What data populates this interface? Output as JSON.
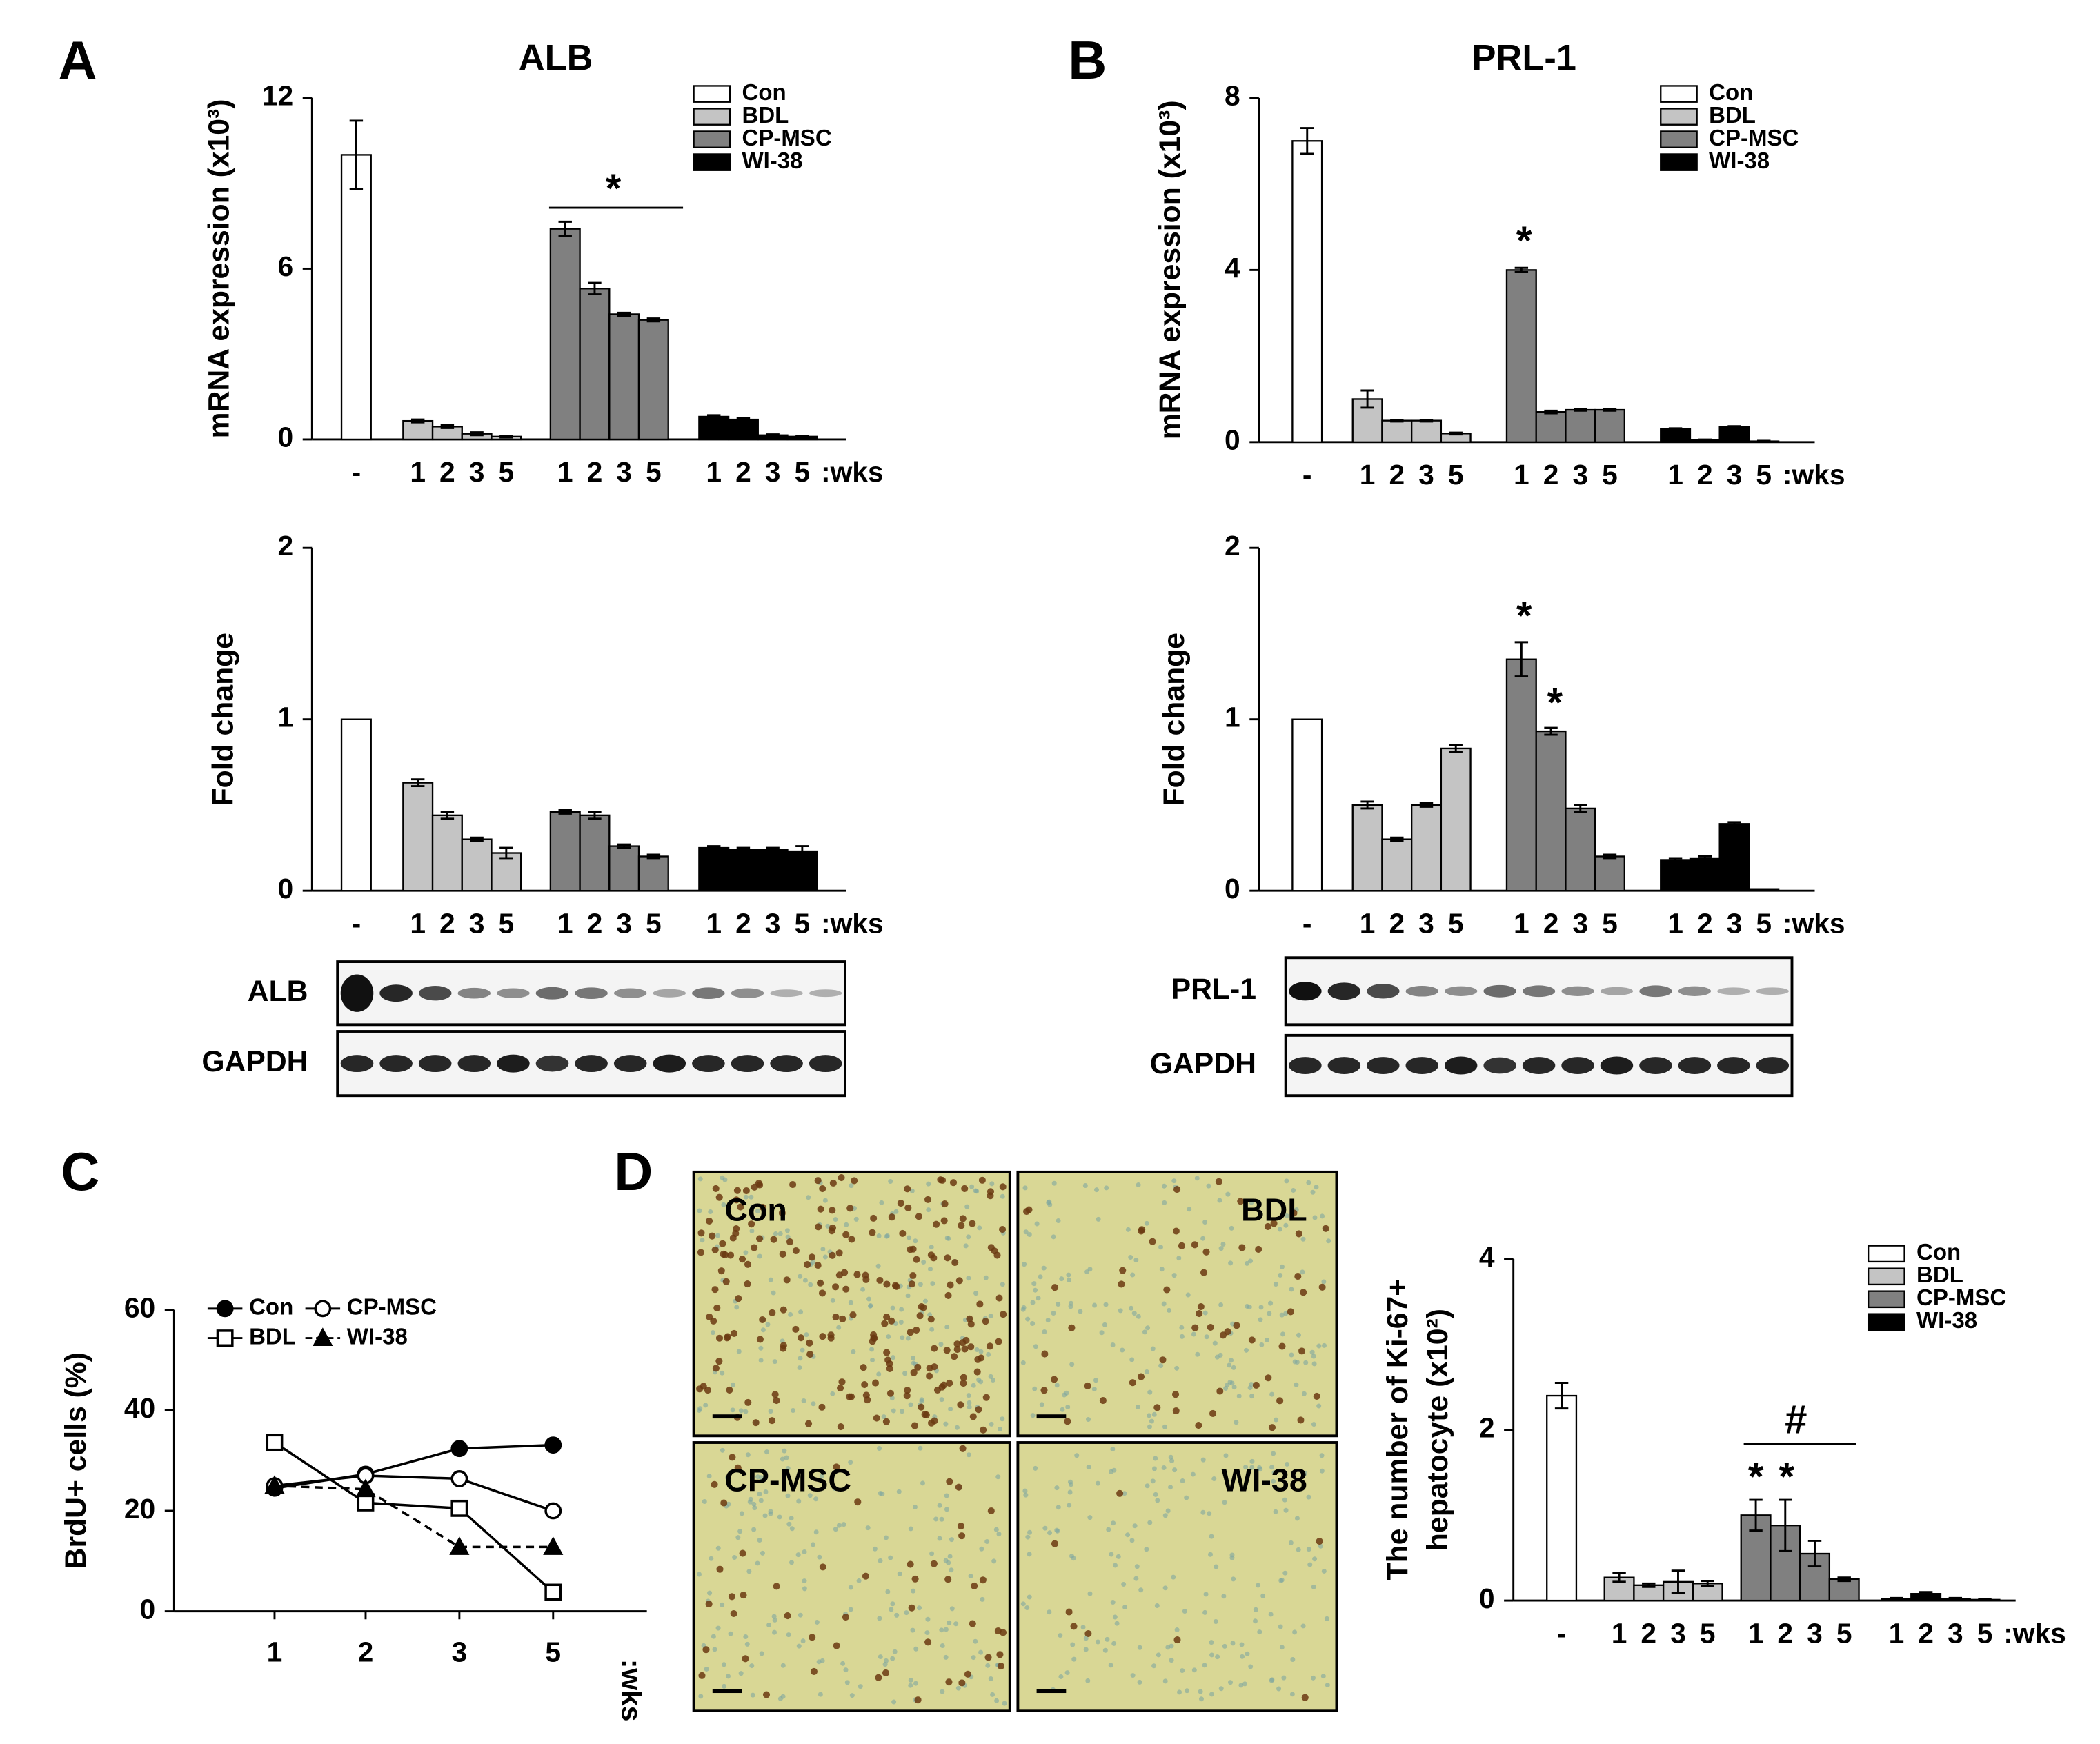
{
  "chart_data": [
    {
      "type": "bar",
      "panel": "A",
      "title": "ALB",
      "ylabel": [
        "mRNA expression (x10³)"
      ],
      "ylim": [
        0,
        12
      ],
      "yticks": [
        0,
        6,
        12
      ],
      "x_unit": ":wks",
      "legend": "upper right",
      "series": [
        {
          "name": "Con",
          "color": "#ffffff",
          "categories": [
            "-"
          ],
          "values": [
            10
          ],
          "errors": [
            1.2
          ]
        },
        {
          "name": "BDL",
          "color": "#c4c4c4",
          "categories": [
            "1",
            "2",
            "3",
            "5"
          ],
          "values": [
            0.65,
            0.45,
            0.2,
            0.1
          ],
          "errors": [
            0.05,
            0.05,
            0.05,
            0.03
          ]
        },
        {
          "name": "CP-MSC",
          "color": "#808080",
          "categories": [
            "1",
            "2",
            "3",
            "5"
          ],
          "values": [
            7.4,
            5.3,
            4.4,
            4.2
          ],
          "errors": [
            0.25,
            0.2,
            0.05,
            0.05
          ]
        },
        {
          "name": "WI-38",
          "color": "#000000",
          "categories": [
            "1",
            "2",
            "3",
            "5"
          ],
          "values": [
            0.8,
            0.7,
            0.15,
            0.1
          ],
          "errors": [
            0.05,
            0.05,
            0.03,
            0.02
          ]
        }
      ],
      "annotations": [
        "*"
      ]
    },
    {
      "type": "bar",
      "ylabel": [
        "Fold change"
      ],
      "ylim": [
        0,
        2
      ],
      "yticks": [
        0,
        1,
        2
      ],
      "x_unit": ":wks",
      "series": [
        {
          "color": "#ffffff",
          "categories": [
            "-"
          ],
          "values": [
            1
          ],
          "errors": [
            0
          ]
        },
        {
          "color": "#c4c4c4",
          "categories": [
            "1",
            "2",
            "3",
            "5"
          ],
          "values": [
            0.63,
            0.44,
            0.3,
            0.22
          ],
          "errors": [
            0.02,
            0.02,
            0.01,
            0.03
          ]
        },
        {
          "color": "#808080",
          "categories": [
            "1",
            "2",
            "3",
            "5"
          ],
          "values": [
            0.46,
            0.44,
            0.26,
            0.2
          ],
          "errors": [
            0.01,
            0.02,
            0.01,
            0.01
          ]
        },
        {
          "color": "#000000",
          "categories": [
            "1",
            "2",
            "3",
            "5"
          ],
          "values": [
            0.25,
            0.24,
            0.24,
            0.23
          ],
          "errors": [
            0.01,
            0.01,
            0.01,
            0.03
          ]
        }
      ],
      "blots": [
        "ALB",
        "GAPDH"
      ]
    },
    {
      "type": "bar",
      "panel": "B",
      "title": "PRL-1",
      "ylabel": [
        "mRNA expression (x10³)"
      ],
      "ylim": [
        0,
        8
      ],
      "yticks": [
        0,
        4,
        8
      ],
      "x_unit": ":wks",
      "legend": "upper right",
      "series": [
        {
          "name": "Con",
          "color": "#ffffff",
          "categories": [
            "-"
          ],
          "values": [
            7.0
          ],
          "errors": [
            0.3
          ]
        },
        {
          "name": "BDL",
          "color": "#c4c4c4",
          "categories": [
            "1",
            "2",
            "3",
            "5"
          ],
          "values": [
            1.0,
            0.5,
            0.5,
            0.2
          ],
          "errors": [
            0.2,
            0.02,
            0.02,
            0.02
          ]
        },
        {
          "name": "CP-MSC",
          "color": "#808080",
          "categories": [
            "1",
            "2",
            "3",
            "5"
          ],
          "values": [
            4.0,
            0.7,
            0.75,
            0.75
          ],
          "errors": [
            0.05,
            0.03,
            0.02,
            0.02
          ]
        },
        {
          "name": "WI-38",
          "color": "#000000",
          "categories": [
            "1",
            "2",
            "3",
            "5"
          ],
          "values": [
            0.3,
            0.05,
            0.35,
            0.02
          ],
          "errors": [
            0.02,
            0.01,
            0.02,
            0.01
          ]
        }
      ],
      "annotations": [
        "*"
      ]
    },
    {
      "type": "bar",
      "ylabel": [
        "Fold change"
      ],
      "ylim": [
        0,
        2
      ],
      "yticks": [
        0,
        1,
        2
      ],
      "x_unit": ":wks",
      "series": [
        {
          "color": "#ffffff",
          "categories": [
            "-"
          ],
          "values": [
            1
          ],
          "errors": [
            0
          ]
        },
        {
          "color": "#c4c4c4",
          "categories": [
            "1",
            "2",
            "3",
            "5"
          ],
          "values": [
            0.5,
            0.3,
            0.5,
            0.83
          ],
          "errors": [
            0.02,
            0.01,
            0.01,
            0.02
          ]
        },
        {
          "color": "#808080",
          "categories": [
            "1",
            "2",
            "3",
            "5"
          ],
          "values": [
            1.35,
            0.93,
            0.48,
            0.2
          ],
          "errors": [
            0.1,
            0.02,
            0.02,
            0.01
          ]
        },
        {
          "color": "#000000",
          "categories": [
            "1",
            "2",
            "3",
            "5"
          ],
          "values": [
            0.18,
            0.19,
            0.39,
            0.01
          ],
          "errors": [
            0.01,
            0.01,
            0.01,
            0.0
          ]
        }
      ],
      "annotations": [
        "*",
        "*"
      ],
      "blots": [
        "PRL-1",
        "GAPDH"
      ]
    },
    {
      "type": "line",
      "panel": "C",
      "ylabel": [
        "BrdU+ cells (%)"
      ],
      "ylim": [
        0,
        60
      ],
      "yticks": [
        0,
        20,
        40,
        60
      ],
      "x_unit": ":wks",
      "categories": [
        "1",
        "2",
        "3",
        "5"
      ],
      "series": [
        {
          "name": "Con",
          "color": "#000000",
          "marker": "circle",
          "filled": true,
          "line": "solid",
          "values": [
            24.5,
            27.3,
            32.4,
            33.1
          ]
        },
        {
          "name": "CP-MSC",
          "color": "#000000",
          "marker": "circle",
          "filled": false,
          "line": "solid",
          "values": [
            25,
            27,
            26.4,
            20
          ]
        },
        {
          "name": "BDL",
          "color": "#000000",
          "marker": "square",
          "filled": false,
          "line": "solid",
          "values": [
            33.6,
            21.6,
            20.5,
            3.8
          ]
        },
        {
          "name": "WI-38",
          "color": "#000000",
          "marker": "triangle",
          "filled": true,
          "line": "dashed",
          "values": [
            25,
            24.3,
            12.8,
            12.8
          ]
        }
      ]
    },
    {
      "type": "bar",
      "panel": "D",
      "ylabel": [
        "The number of Ki-67+",
        "hepatocyte (x10²)"
      ],
      "ylim": [
        0,
        4
      ],
      "yticks": [
        0,
        2,
        4
      ],
      "x_unit": ":wks",
      "legend": "upper right",
      "image_labels": [
        "Con",
        "BDL",
        "CP-MSC",
        "WI-38"
      ],
      "series": [
        {
          "name": "Con",
          "color": "#ffffff",
          "categories": [
            "-"
          ],
          "values": [
            2.4
          ],
          "errors": [
            0.15
          ]
        },
        {
          "name": "BDL",
          "color": "#c4c4c4",
          "categories": [
            "1",
            "2",
            "3",
            "5"
          ],
          "values": [
            0.27,
            0.18,
            0.22,
            0.2
          ],
          "errors": [
            0.05,
            0.02,
            0.13,
            0.03
          ]
        },
        {
          "name": "CP-MSC",
          "color": "#808080",
          "categories": [
            "1",
            "2",
            "3",
            "5"
          ],
          "values": [
            1.0,
            0.88,
            0.55,
            0.25
          ],
          "errors": [
            0.18,
            0.3,
            0.15,
            0.02
          ]
        },
        {
          "name": "WI-38",
          "color": "#000000",
          "categories": [
            "1",
            "2",
            "3",
            "5"
          ],
          "values": [
            0.02,
            0.08,
            0.02,
            0.01
          ],
          "errors": [
            0.01,
            0.02,
            0.01,
            0.01
          ]
        }
      ],
      "annotations": [
        "#",
        "*",
        "*"
      ]
    }
  ]
}
